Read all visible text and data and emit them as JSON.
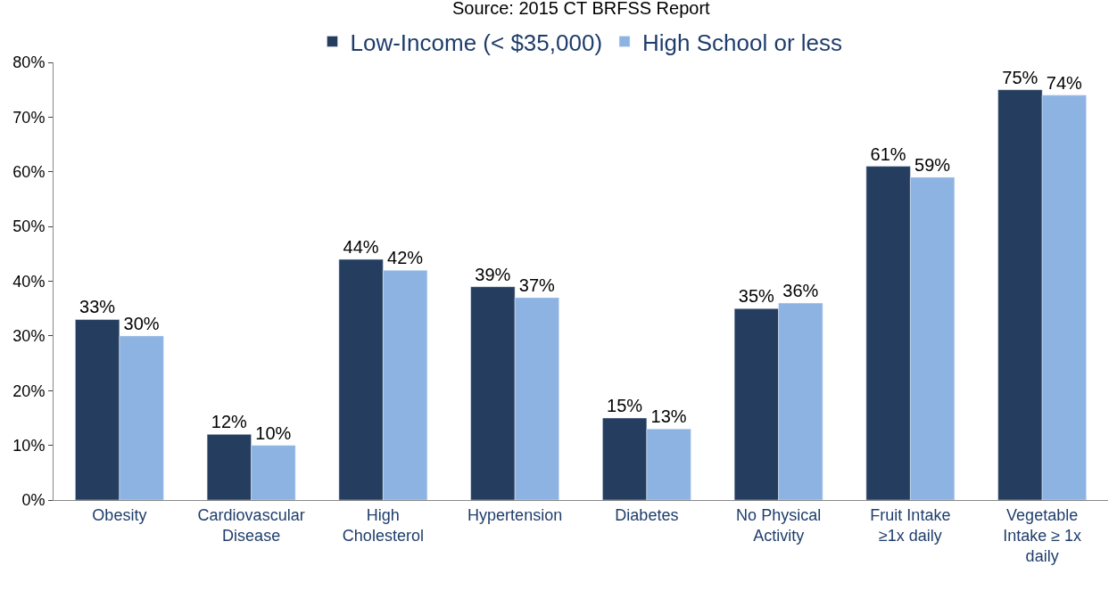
{
  "chart_data": {
    "type": "bar",
    "annotations": [
      "Source: 2015 CT BRFSS Report"
    ],
    "categories": [
      "Obesity",
      "Cardiovascular Disease",
      "High Cholesterol",
      "Hypertension",
      "Diabetes",
      "No Physical Activity",
      "Fruit Intake ≥1x daily",
      "Vegetable Intake ≥ 1x daily"
    ],
    "series": [
      {
        "name": "Low-Income (< $35,000)",
        "color": "#253d5e",
        "values": [
          33,
          12,
          44,
          39,
          15,
          35,
          61,
          75
        ],
        "value_labels": [
          "33%",
          "12%",
          "44%",
          "39%",
          "15%",
          "35%",
          "61%",
          "75%"
        ]
      },
      {
        "name": "High School or less",
        "color": "#8db3e2",
        "values": [
          30,
          10,
          42,
          37,
          13,
          36,
          59,
          74
        ],
        "value_labels": [
          "30%",
          "10%",
          "42%",
          "37%",
          "13%",
          "36%",
          "59%",
          "74%"
        ]
      }
    ],
    "ylim": [
      0,
      80
    ],
    "yticks": [
      {
        "value": 0,
        "label": "0%"
      },
      {
        "value": 10,
        "label": "10%"
      },
      {
        "value": 20,
        "label": "20%"
      },
      {
        "value": 30,
        "label": "30%"
      },
      {
        "value": 40,
        "label": "40%"
      },
      {
        "value": 50,
        "label": "50%"
      },
      {
        "value": 60,
        "label": "60%"
      },
      {
        "value": 70,
        "label": "70%"
      },
      {
        "value": 80,
        "label": "80%"
      }
    ],
    "legend": "top"
  }
}
